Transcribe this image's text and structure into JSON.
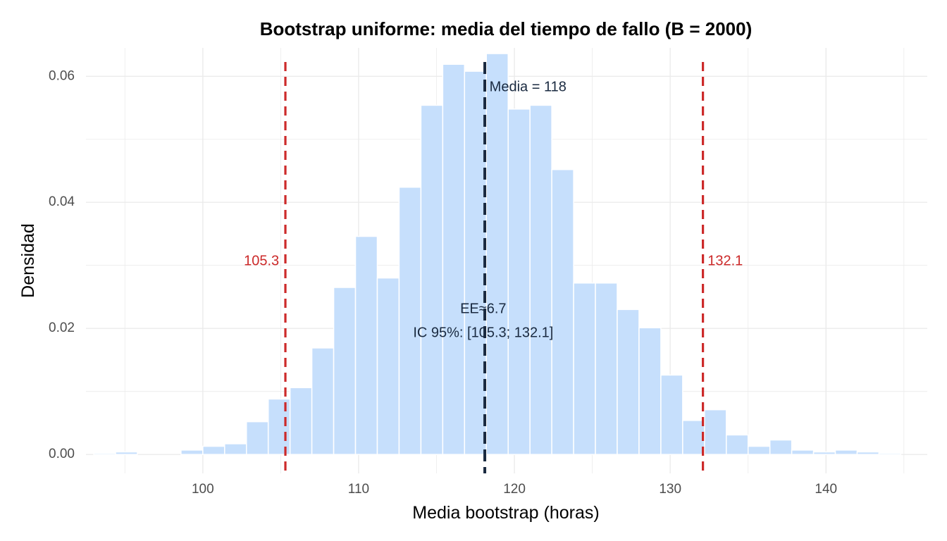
{
  "chart_data": {
    "type": "bar",
    "title": "Bootstrap uniforme: media del tiempo de fallo (B = 2000)",
    "xlabel": "Media bootstrap (horas)",
    "ylabel": "Densidad",
    "xlim": [
      92.5,
      146.5
    ],
    "ylim": [
      -0.003,
      0.0645
    ],
    "xticks": [
      100,
      110,
      120,
      130,
      140
    ],
    "yticks": [
      0.0,
      0.02,
      0.04,
      0.06
    ],
    "xtick_labels": [
      "100",
      "110",
      "120",
      "130",
      "140"
    ],
    "ytick_labels": [
      "0.00",
      "0.02",
      "0.04",
      "0.06"
    ],
    "grid": true,
    "bar_color": "#c6dffc",
    "bin_width": 1.4,
    "bins": [
      {
        "x0": 93.0,
        "x1": 94.4,
        "density": 0.0002
      },
      {
        "x0": 94.4,
        "x1": 95.8,
        "density": 0.0004
      },
      {
        "x0": 95.8,
        "x1": 97.2,
        "density": 0.0
      },
      {
        "x0": 97.2,
        "x1": 98.6,
        "density": 0.0
      },
      {
        "x0": 98.6,
        "x1": 100.0,
        "density": 0.0007
      },
      {
        "x0": 100.0,
        "x1": 101.4,
        "density": 0.0013
      },
      {
        "x0": 101.4,
        "x1": 102.8,
        "density": 0.0017
      },
      {
        "x0": 102.8,
        "x1": 104.2,
        "density": 0.0052
      },
      {
        "x0": 104.2,
        "x1": 105.6,
        "density": 0.0088
      },
      {
        "x0": 105.6,
        "x1": 107.0,
        "density": 0.0106
      },
      {
        "x0": 107.0,
        "x1": 108.4,
        "density": 0.0169
      },
      {
        "x0": 108.4,
        "x1": 109.8,
        "density": 0.0265
      },
      {
        "x0": 109.8,
        "x1": 111.2,
        "density": 0.0346
      },
      {
        "x0": 111.2,
        "x1": 112.6,
        "density": 0.028
      },
      {
        "x0": 112.6,
        "x1": 114.0,
        "density": 0.0424
      },
      {
        "x0": 114.0,
        "x1": 115.4,
        "density": 0.0554
      },
      {
        "x0": 115.4,
        "x1": 116.8,
        "density": 0.0619
      },
      {
        "x0": 116.8,
        "x1": 118.2,
        "density": 0.0608
      },
      {
        "x0": 118.2,
        "x1": 119.6,
        "density": 0.0636
      },
      {
        "x0": 119.6,
        "x1": 121.0,
        "density": 0.0548
      },
      {
        "x0": 121.0,
        "x1": 122.4,
        "density": 0.0554
      },
      {
        "x0": 122.4,
        "x1": 123.8,
        "density": 0.0452
      },
      {
        "x0": 123.8,
        "x1": 125.2,
        "density": 0.0272
      },
      {
        "x0": 125.2,
        "x1": 126.6,
        "density": 0.0272
      },
      {
        "x0": 126.6,
        "x1": 128.0,
        "density": 0.023
      },
      {
        "x0": 128.0,
        "x1": 129.4,
        "density": 0.0201
      },
      {
        "x0": 129.4,
        "x1": 130.8,
        "density": 0.0126
      },
      {
        "x0": 130.8,
        "x1": 132.2,
        "density": 0.0054
      },
      {
        "x0": 132.2,
        "x1": 133.6,
        "density": 0.0071
      },
      {
        "x0": 133.6,
        "x1": 135.0,
        "density": 0.0031
      },
      {
        "x0": 135.0,
        "x1": 136.4,
        "density": 0.0013
      },
      {
        "x0": 136.4,
        "x1": 137.8,
        "density": 0.0023
      },
      {
        "x0": 137.8,
        "x1": 139.2,
        "density": 0.0007
      },
      {
        "x0": 139.2,
        "x1": 140.6,
        "density": 0.0004
      },
      {
        "x0": 140.6,
        "x1": 142.0,
        "density": 0.0007
      },
      {
        "x0": 142.0,
        "x1": 143.4,
        "density": 0.0004
      },
      {
        "x0": 143.4,
        "x1": 144.8,
        "density": 0.0002
      }
    ],
    "vlines": [
      {
        "name": "mean",
        "x": 118.1,
        "color": "#1a2a40",
        "style": "dashed"
      },
      {
        "name": "ci-lower",
        "x": 105.3,
        "color": "#cc2a2a",
        "style": "dashed"
      },
      {
        "name": "ci-upper",
        "x": 132.1,
        "color": "#cc2a2a",
        "style": "dashed"
      }
    ],
    "annotations": [
      {
        "name": "mean-label",
        "text": "Media = 118",
        "x": 118.4,
        "y": 0.0582,
        "anchor": "start",
        "color": "#1a2a40"
      },
      {
        "name": "ci-lower-label",
        "text": "105.3",
        "x": 104.9,
        "y": 0.0306,
        "anchor": "end",
        "color": "#cc2a2a"
      },
      {
        "name": "ci-upper-label",
        "text": "132.1",
        "x": 132.4,
        "y": 0.0306,
        "anchor": "start",
        "color": "#cc2a2a"
      },
      {
        "name": "se-label",
        "text": "EE≈6.7",
        "x": 118.0,
        "y": 0.023,
        "anchor": "middle",
        "color": "#1a2a40"
      },
      {
        "name": "ci-label",
        "text": "IC 95%: [105.3; 132.1]",
        "x": 118.0,
        "y": 0.0192,
        "anchor": "middle",
        "color": "#1a2a40"
      }
    ]
  }
}
